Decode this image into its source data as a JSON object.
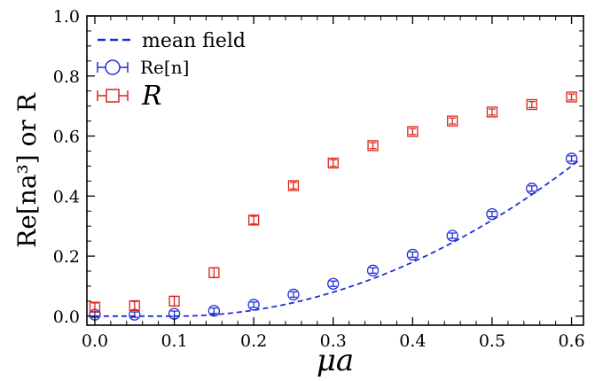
{
  "chart_data": {
    "type": "scatter",
    "xlabel": "μa",
    "ylabel": "Re[na³] or R",
    "xlim": [
      -0.01,
      0.615
    ],
    "ylim": [
      -0.03,
      1.0
    ],
    "xticks": [
      "0.0",
      "0.1",
      "0.2",
      "0.3",
      "0.4",
      "0.5",
      "0.6"
    ],
    "yticks": [
      "0.0",
      "0.2",
      "0.4",
      "0.6",
      "0.8",
      "1.0"
    ],
    "grid": false,
    "legend_position": "top-left",
    "series": [
      {
        "name": "mean field",
        "kind": "line",
        "style": "dashed",
        "color": "#1f2fd6",
        "x": [
          0.0,
          0.1,
          0.12,
          0.14,
          0.16,
          0.18,
          0.2,
          0.22,
          0.24,
          0.26,
          0.28,
          0.3,
          0.32,
          0.34,
          0.36,
          0.38,
          0.4,
          0.42,
          0.44,
          0.46,
          0.48,
          0.5,
          0.52,
          0.54,
          0.56,
          0.58,
          0.6,
          0.612
        ],
        "y": [
          0.0,
          0.0,
          0.0003,
          0.0025,
          0.0068,
          0.0134,
          0.0221,
          0.033,
          0.046,
          0.061,
          0.078,
          0.097,
          0.118,
          0.141,
          0.166,
          0.193,
          0.222,
          0.253,
          0.286,
          0.321,
          0.358,
          0.397,
          0.438,
          0.481,
          0.526,
          0.573,
          0.498,
          0.513
        ]
      },
      {
        "name": "Re[n]",
        "kind": "points",
        "marker": "circle",
        "color": "#1f2fd6",
        "x": [
          0.0,
          0.05,
          0.1,
          0.15,
          0.2,
          0.25,
          0.3,
          0.35,
          0.4,
          0.45,
          0.5,
          0.55,
          0.6
        ],
        "y": [
          0.005,
          0.005,
          0.008,
          0.018,
          0.038,
          0.072,
          0.108,
          0.152,
          0.205,
          0.268,
          0.34,
          0.425,
          0.525
        ],
        "err": [
          0.004,
          0.004,
          0.004,
          0.004,
          0.004,
          0.005,
          0.005,
          0.005,
          0.006,
          0.006,
          0.006,
          0.006,
          0.007
        ]
      },
      {
        "name": "R",
        "kind": "points",
        "marker": "square",
        "color": "#d9241a",
        "x": [
          0.0,
          0.05,
          0.1,
          0.15,
          0.2,
          0.25,
          0.3,
          0.35,
          0.4,
          0.45,
          0.5,
          0.55,
          0.6
        ],
        "y": [
          0.03,
          0.035,
          0.05,
          0.145,
          0.32,
          0.435,
          0.51,
          0.568,
          0.615,
          0.65,
          0.68,
          0.705,
          0.73
        ],
        "err": [
          0.014,
          0.014,
          0.016,
          0.016,
          0.013,
          0.011,
          0.011,
          0.01,
          0.01,
          0.01,
          0.01,
          0.01,
          0.01
        ]
      }
    ]
  }
}
